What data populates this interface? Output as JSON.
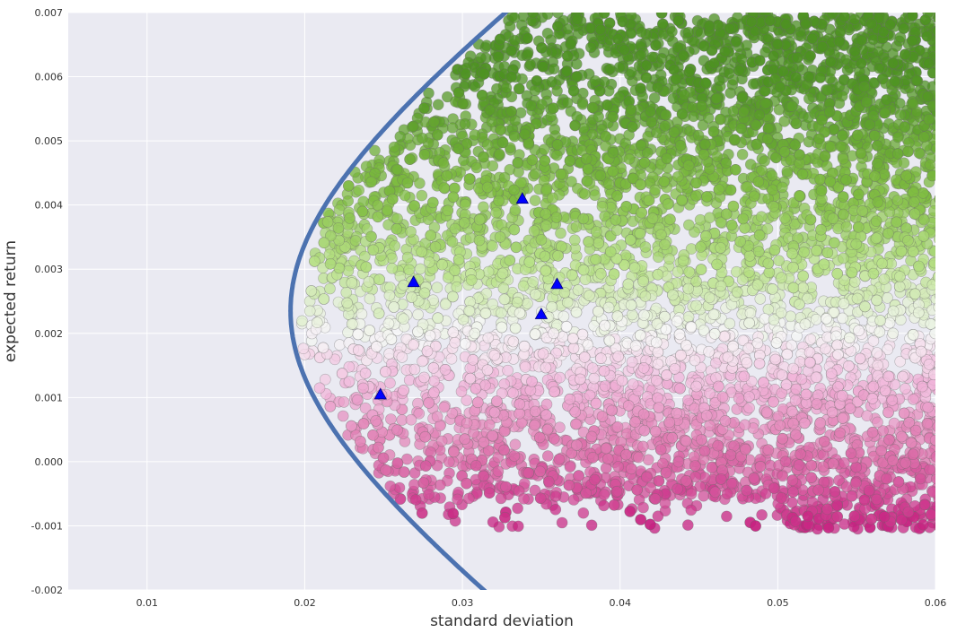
{
  "chart_data": {
    "type": "scatter",
    "xlabel": "standard deviation",
    "ylabel": "expected return",
    "xlim": [
      0.005,
      0.06
    ],
    "ylim": [
      -0.002,
      0.007
    ],
    "x_ticks": [
      "0.01",
      "0.02",
      "0.03",
      "0.04",
      "0.05",
      "0.06"
    ],
    "y_ticks": [
      "-0.002",
      "-0.001",
      "0.000",
      "0.001",
      "0.002",
      "0.003",
      "0.004",
      "0.005",
      "0.006",
      "0.007"
    ],
    "grid": true,
    "colormap": "PiYG",
    "colors": {
      "background": "#EAEAF2",
      "grid": "#FFFFFF",
      "frontier": "#4C72B0",
      "markers": "#0000FF",
      "high_return": "#4D9221",
      "mid_return": "#F7F7F7",
      "low_return": "#C51B7D"
    },
    "frontier": {
      "min_variance_std": 0.0191,
      "min_variance_return": 0.00235,
      "curvature": 0.000175
    },
    "portfolios": {
      "description_count": 6500,
      "x_range": [
        0.0195,
        0.06
      ],
      "y_range": [
        -0.00105,
        0.007
      ]
    },
    "markers": {
      "shape": "triangle",
      "points": [
        {
          "x": 0.0248,
          "y": 0.00105
        },
        {
          "x": 0.0269,
          "y": 0.0028
        },
        {
          "x": 0.0338,
          "y": 0.0041
        },
        {
          "x": 0.035,
          "y": 0.0023
        },
        {
          "x": 0.036,
          "y": 0.00277
        }
      ]
    }
  }
}
